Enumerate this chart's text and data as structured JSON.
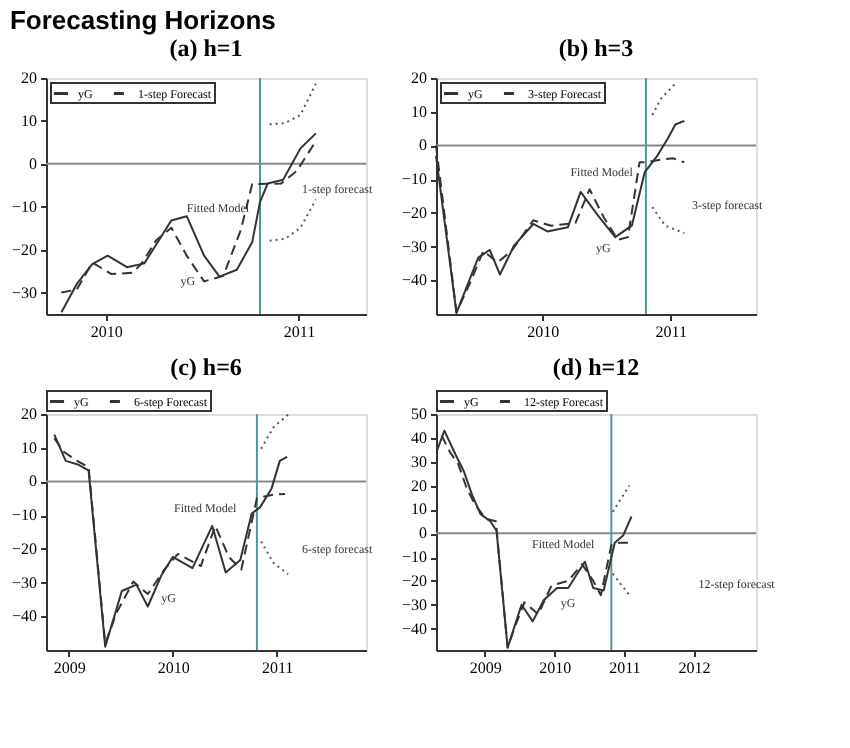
{
  "chart_data": [
    {
      "type": "line",
      "title": "Forecasting Horizons",
      "subtitle": "(a) h=1",
      "xlim": [
        2009.69,
        2011.35
      ],
      "xticks": [
        2010,
        2011
      ],
      "ylim": [
        -35,
        20
      ],
      "yticks": [
        20,
        10,
        0,
        -10,
        -20,
        -30
      ],
      "grid": false,
      "legend": "top left",
      "series": [
        {
          "name": "yG",
          "color": "#333333",
          "line_style": "solid",
          "x": [
            2009.77,
            2009.85,
            2009.93,
            2010.01,
            2010.11,
            2010.2,
            2010.27,
            2010.34,
            2010.42,
            2010.51,
            2010.59,
            2010.68,
            2010.76,
            2010.8,
            2010.84,
            2010.92,
            2011.01,
            2011.09
          ],
          "values": [
            -34.6,
            -28.0,
            -23.4,
            -21.4,
            -24.1,
            -23.2,
            -18.2,
            -13.2,
            -12.2,
            -21.4,
            -26.3,
            -24.7,
            -18.2,
            -8.9,
            -4.6,
            -3.7,
            3.6,
            7.1
          ]
        },
        {
          "name": "1-step Forecast",
          "color": "#333333",
          "line_style": "dashed",
          "x": [
            2009.77,
            2009.85,
            2009.93,
            2010.03,
            2010.14,
            2010.19,
            2010.26,
            2010.34,
            2010.42,
            2010.51,
            2010.61,
            2010.7,
            2010.76,
            2010.8,
            2010.91,
            2010.99,
            2011.09
          ],
          "values": [
            -30.0,
            -29.3,
            -23.0,
            -25.7,
            -25.4,
            -23.0,
            -17.9,
            -14.9,
            -21.4,
            -27.4,
            -26.1,
            -15.5,
            -4.7,
            -4.7,
            -4.6,
            -1.7,
            5.3
          ]
        },
        {
          "color": "#555555",
          "line_style": "dotted",
          "x": [
            2010.85,
            2010.93,
            2011.01,
            2011.09
          ],
          "values": [
            9.2,
            9.5,
            11.4,
            18.7
          ]
        },
        {
          "color": "#5c5c5c",
          "line_style": "dotted",
          "x": [
            2010.85,
            2010.93,
            2011.01,
            2011.09
          ],
          "values": [
            -17.9,
            -17.5,
            -14.9,
            -8.3
          ]
        }
      ],
      "ref_lines": [
        {
          "axis": "x",
          "value": 2010.8,
          "color": "#4a9a9a"
        },
        {
          "axis": "y",
          "value": 0,
          "color": "#888888"
        }
      ],
      "annotations": [
        "Fitted Model",
        "yG",
        "1-step forecast"
      ]
    },
    {
      "type": "line",
      "subtitle": "(b) h=3",
      "xlim": [
        2009.17,
        2011.67
      ],
      "xticks": [
        2010,
        2011
      ],
      "ylim": [
        -50,
        20
      ],
      "yticks": [
        20,
        10,
        0,
        -10,
        -20,
        -30,
        -40
      ],
      "grid": false,
      "legend": "top left",
      "series": [
        {
          "name": "yG",
          "color": "#333333",
          "line_style": "solid",
          "x": [
            2009.17,
            2009.33,
            2009.5,
            2009.59,
            2009.67,
            2009.78,
            2009.93,
            2010.04,
            2010.2,
            2010.3,
            2010.43,
            2010.57,
            2010.7,
            2010.8,
            2010.9,
            2010.98,
            2011.04,
            2011.11
          ],
          "values": [
            -3.0,
            -49.7,
            -33.3,
            -31.0,
            -38.3,
            -29.7,
            -23.3,
            -25.5,
            -24.3,
            -13.8,
            -20.5,
            -27.2,
            -23.8,
            -8.0,
            -3.0,
            2.0,
            6.2,
            7.3
          ]
        },
        {
          "name": "3-step Forecast",
          "color": "#333333",
          "line_style": "dashed",
          "x": [
            2009.17,
            2009.33,
            2009.43,
            2009.54,
            2009.65,
            2009.76,
            2009.93,
            2010.07,
            2010.26,
            2010.37,
            2010.48,
            2010.59,
            2010.67,
            2010.76,
            2010.81,
            2010.91,
            2011.02,
            2011.11
          ],
          "values": [
            0,
            -49.5,
            -41.3,
            -31.3,
            -34.7,
            -31.3,
            -22.2,
            -23.8,
            -23.0,
            -13.0,
            -21.3,
            -28.0,
            -27.2,
            -5.0,
            -5.0,
            -4.3,
            -3.8,
            -5.0
          ]
        },
        {
          "color": "#555555",
          "line_style": "dotted",
          "x": [
            2010.86,
            2010.93,
            2011.04
          ],
          "values": [
            9.0,
            14.0,
            18.3
          ]
        },
        {
          "color": "#5c5c5c",
          "line_style": "dotted",
          "x": [
            2010.86,
            2010.96,
            2011.11
          ],
          "values": [
            -18.3,
            -23.8,
            -26.0
          ]
        }
      ],
      "ref_lines": [
        {
          "axis": "x",
          "value": 2010.81,
          "color": "#4a9a9a"
        },
        {
          "axis": "y",
          "value": 0,
          "color": "#888888"
        }
      ],
      "annotations": [
        "Fitted Model",
        "yG",
        "3-step forecast"
      ]
    },
    {
      "type": "line",
      "subtitle": "(c) h=6",
      "xlim": [
        2008.78,
        2011.86
      ],
      "xticks": [
        2009,
        2010,
        2011
      ],
      "ylim": [
        -50,
        20
      ],
      "yticks": [
        20,
        10,
        0,
        -10,
        -20,
        -30,
        -40
      ],
      "grid": false,
      "legend": "top",
      "series": [
        {
          "name": "yG",
          "color": "#333333",
          "line_style": "solid",
          "x": [
            2008.86,
            2008.97,
            2009.08,
            2009.19,
            2009.35,
            2009.51,
            2009.65,
            2009.76,
            2009.89,
            2010.0,
            2010.19,
            2010.38,
            2010.51,
            2010.65,
            2010.76,
            2010.84,
            2010.95,
            2011.03,
            2011.1
          ],
          "values": [
            13.9,
            6.1,
            5.1,
            3.3,
            -49,
            -32.5,
            -30.6,
            -37.1,
            -27.9,
            -22.4,
            -25.7,
            -13.2,
            -27.0,
            -23.3,
            -9.5,
            -7.7,
            -2.2,
            6.1,
            7.3
          ]
        },
        {
          "name": "6-step Forecast",
          "color": "#333333",
          "line_style": "dashed",
          "x": [
            2008.86,
            2008.95,
            2009.08,
            2009.19,
            2009.35,
            2009.46,
            2009.62,
            2009.76,
            2009.92,
            2010.05,
            2010.27,
            2010.41,
            2010.54,
            2010.66,
            2010.81,
            2010.95,
            2011.08
          ],
          "values": [
            12.8,
            8.8,
            6.1,
            4.2,
            -48.1,
            -38.9,
            -29.7,
            -33.4,
            -26.1,
            -21.5,
            -25.1,
            -13.2,
            -22.4,
            -26.1,
            -5.0,
            -4.0,
            -3.7
          ]
        },
        {
          "color": "#555555",
          "line_style": "dotted",
          "x": [
            2010.85,
            2010.97,
            2011.11
          ],
          "values": [
            9.7,
            16.1,
            19.8
          ]
        },
        {
          "color": "#5c5c5c",
          "line_style": "dotted",
          "x": [
            2010.85,
            2010.97,
            2011.11
          ],
          "values": [
            -17.8,
            -24.2,
            -27.5
          ]
        }
      ],
      "ref_lines": [
        {
          "axis": "x",
          "value": 2010.81,
          "color": "#4a9a9a"
        },
        {
          "axis": "y",
          "value": 0,
          "color": "#888888"
        }
      ],
      "annotations": [
        "Fitted Model",
        "yG",
        "6-step forecast"
      ]
    },
    {
      "type": "line",
      "subtitle": "(d) h=12",
      "xlim": [
        2008.3,
        2012.9
      ],
      "xticks": [
        2009,
        2010,
        2011,
        2012
      ],
      "ylim": [
        -49,
        50
      ],
      "yticks": [
        50,
        40,
        30,
        20,
        10,
        0,
        -10,
        -20,
        -30,
        -40
      ],
      "grid": false,
      "legend": "top",
      "series": [
        {
          "name": "yG",
          "color": "#333333",
          "line_style": "solid",
          "x": [
            2008.32,
            2008.42,
            2008.58,
            2008.7,
            2008.82,
            2008.94,
            2009.08,
            2009.17,
            2009.33,
            2009.53,
            2009.69,
            2009.85,
            2010.04,
            2010.2,
            2010.44,
            2010.56,
            2010.71,
            2010.79,
            2010.87,
            2010.99,
            2011.11
          ],
          "values": [
            35,
            43,
            33,
            26,
            16,
            8,
            5,
            1,
            -48,
            -30,
            -37,
            -28,
            -23,
            -23,
            -12,
            -23,
            -24,
            -14,
            -4,
            -1,
            7
          ]
        },
        {
          "name": "12-step Forecast",
          "color": "#333333",
          "line_style": "dashed",
          "x": [
            2008.38,
            2008.5,
            2008.62,
            2008.74,
            2008.86,
            2009.02,
            2009.16,
            2009.33,
            2009.45,
            2009.57,
            2009.77,
            2009.96,
            2010.2,
            2010.4,
            2010.56,
            2010.67,
            2010.82,
            2010.89,
            2011.11
          ],
          "values": [
            41,
            34,
            29,
            19,
            12,
            6,
            5,
            -48,
            -38,
            -29,
            -34,
            -22,
            -20,
            -13,
            -20,
            -26,
            -5,
            -4,
            -4
          ]
        },
        {
          "color": "#555555",
          "line_style": "dotted",
          "x": [
            2010.84,
            2011.08
          ],
          "values": [
            9,
            20
          ]
        },
        {
          "color": "#5c5c5c",
          "line_style": "dotted",
          "x": [
            2010.84,
            2011.08
          ],
          "values": [
            -17,
            -26
          ]
        }
      ],
      "ref_lines": [
        {
          "axis": "x",
          "value": 2010.82,
          "color": "#4a9a9a"
        },
        {
          "axis": "y",
          "value": 0,
          "color": "#888888"
        }
      ],
      "annotations": [
        "Fitted Model",
        "yG",
        "12-step forecast"
      ]
    }
  ]
}
